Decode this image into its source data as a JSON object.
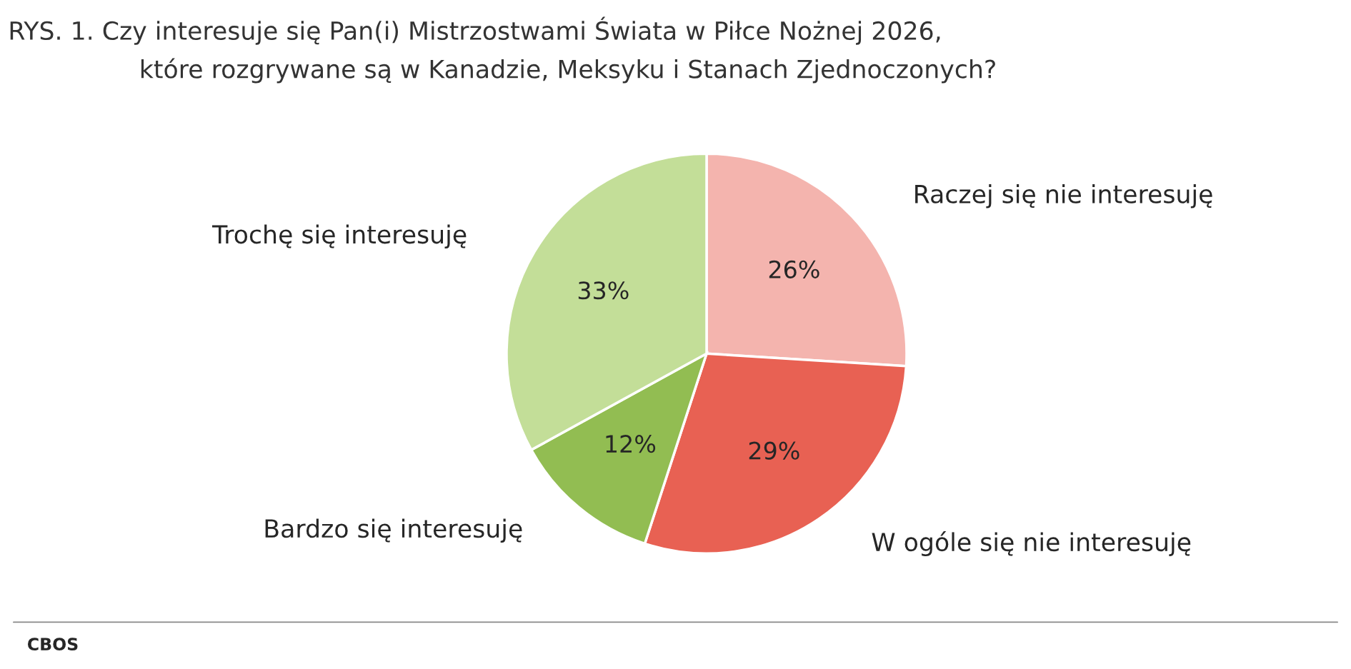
{
  "chart_data": {
    "type": "pie",
    "title": "RYS. 1. Czy interesuje się Pan(i) Mistrzostwami Świata w Piłce Nożnej 2026,\nktóre rozgrywane są w Kanadzie, Meksyku i Stanach Zjednoczonych?",
    "categories": [
      "Raczej się nie interesuję",
      "W ogóle się nie interesuję",
      "Bardzo się interesuję",
      "Trochę się interesuję"
    ],
    "values": [
      26,
      29,
      12,
      33
    ],
    "value_labels": [
      "26%",
      "29%",
      "12%",
      "33%"
    ],
    "colors": [
      "#f4b4ae",
      "#e86153",
      "#92bd52",
      "#c3de98"
    ],
    "annotations": [
      "CBOS"
    ]
  }
}
